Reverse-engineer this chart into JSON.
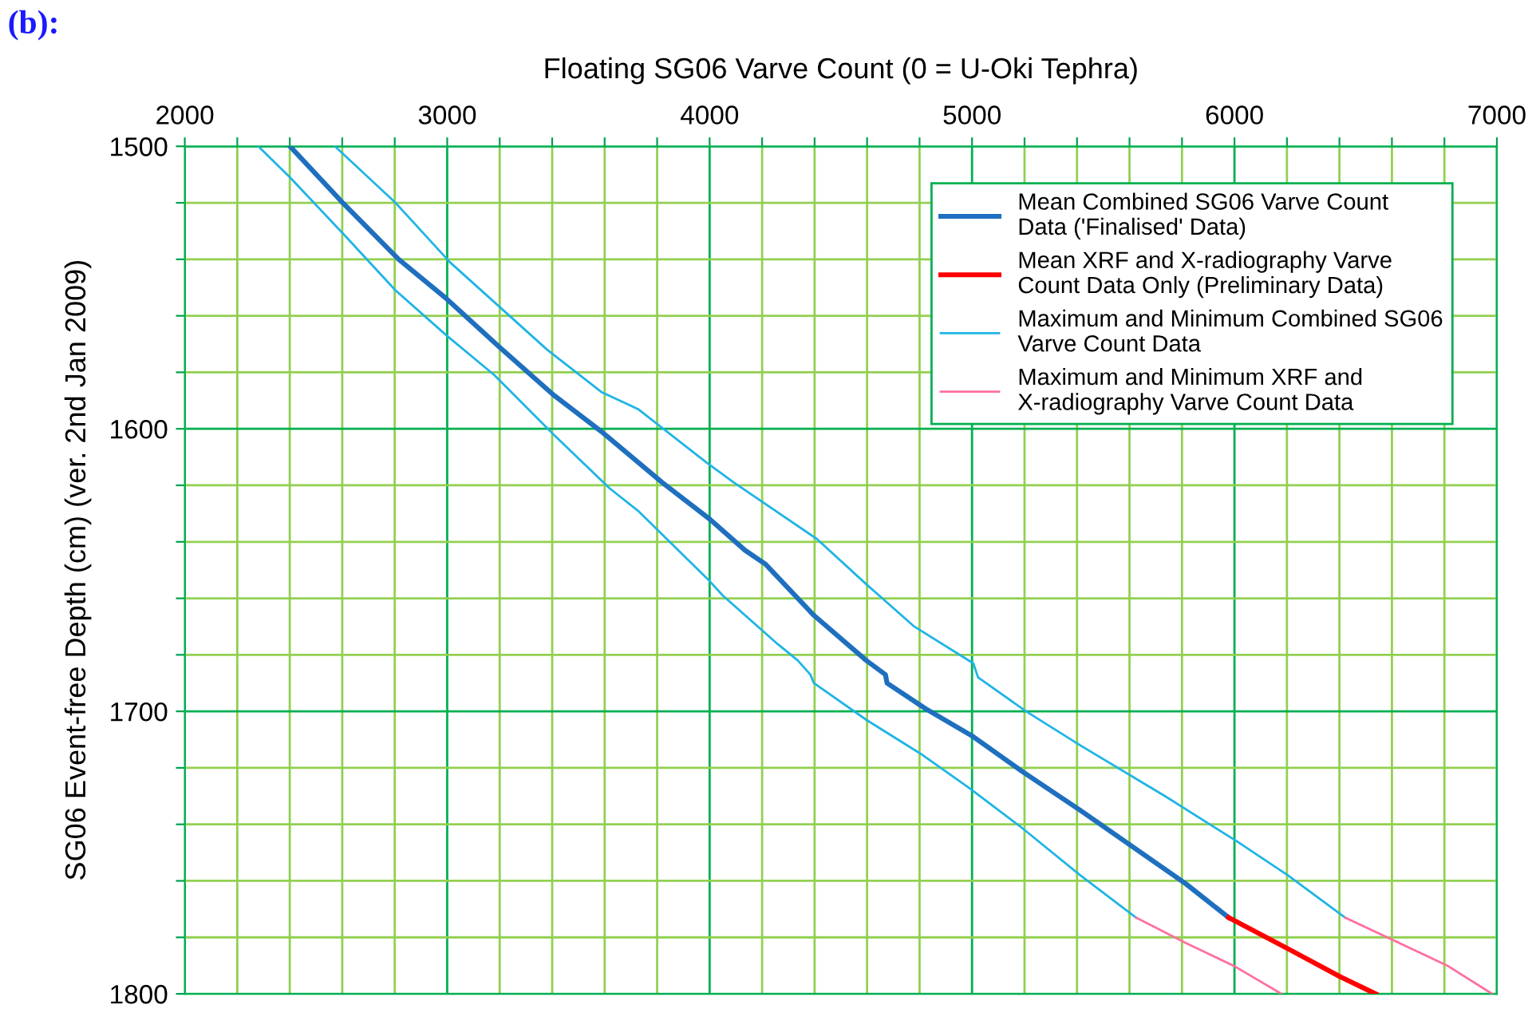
{
  "chart_data": {
    "type": "line",
    "xlabel": "Floating SG06 Varve Count (0 = U-Oki Tephra)",
    "ylabel": "SG06 Event-free Depth (cm) (ver. 2nd Jan 2009)",
    "annotations": [
      "(b):"
    ],
    "xlim": [
      2000,
      7000
    ],
    "ylim": [
      1800,
      1500
    ],
    "xticks": [
      2000,
      {
        "value": 2200,
        "label": null
      },
      {
        "value": 2400,
        "label": null
      },
      {
        "value": 2600,
        "label": null
      },
      {
        "value": 2800,
        "label": null
      },
      3000,
      {
        "value": 3200,
        "label": null
      },
      {
        "value": 3400,
        "label": null
      },
      {
        "value": 3600,
        "label": null
      },
      {
        "value": 3800,
        "label": null
      },
      4000,
      {
        "value": 4200,
        "label": null
      },
      {
        "value": 4400,
        "label": null
      },
      {
        "value": 4600,
        "label": null
      },
      {
        "value": 4800,
        "label": null
      },
      5000,
      {
        "value": 5200,
        "label": null
      },
      {
        "value": 5400,
        "label": null
      },
      {
        "value": 5600,
        "label": null
      },
      {
        "value": 5800,
        "label": null
      },
      6000,
      {
        "value": 6200,
        "label": null
      },
      {
        "value": 6400,
        "label": null
      },
      {
        "value": 6600,
        "label": null
      },
      {
        "value": 6800,
        "label": null
      },
      7000
    ],
    "yticks": [
      1500,
      {
        "value": 1520,
        "label": null
      },
      {
        "value": 1540,
        "label": null
      },
      {
        "value": 1560,
        "label": null
      },
      {
        "value": 1580,
        "label": null
      },
      1600,
      {
        "value": 1620,
        "label": null
      },
      {
        "value": 1640,
        "label": null
      },
      {
        "value": 1660,
        "label": null
      },
      {
        "value": 1680,
        "label": null
      },
      1700,
      {
        "value": 1720,
        "label": null
      },
      {
        "value": 1740,
        "label": null
      },
      {
        "value": 1760,
        "label": null
      },
      {
        "value": 1780,
        "label": null
      },
      1800
    ],
    "grid": true,
    "legend": "top right",
    "marker": "none",
    "line_style": "solid",
    "series": [
      {
        "name": "Mean Combined SG06 Varve Count Data ('Finalised' Data)",
        "color": "#1f6fbf",
        "x": [
          2401,
          2602,
          2815,
          2998,
          3198,
          3405,
          3588,
          3819,
          4001,
          4135,
          4214,
          4397,
          4597,
          4670,
          4676,
          4822,
          5005,
          5187,
          5412,
          5613,
          5814,
          5978
        ],
        "values": [
          1500,
          1520,
          1540,
          1554,
          1571,
          1588,
          1601,
          1619,
          1632,
          1643,
          1648,
          1666,
          1682,
          1687,
          1690,
          1699,
          1709,
          1721,
          1735,
          1748,
          1761,
          1773
        ]
      },
      {
        "name": "Mean XRF and X-radiography Varve Count Data Only (Preliminary Data)",
        "color": "#ff0000",
        "x": [
          5978,
          6203,
          6404,
          6538
        ],
        "values": [
          1773,
          1784,
          1794,
          1800
        ]
      },
      {
        "name": "Maximum and Minimum Combined SG06 Varve Count Data",
        "color": "#1fb4e6",
        "x": [
          2572,
          2803,
          3010,
          3381,
          3588,
          3727,
          3989,
          4092,
          4409,
          4597,
          4658,
          4780,
          5005,
          5023,
          5206,
          5412,
          5735,
          6009,
          6203,
          6422
        ],
        "values": [
          1500,
          1520,
          1541,
          1572,
          1587,
          1593,
          1612,
          1619,
          1639,
          1655,
          1660,
          1670,
          1683,
          1688,
          1700,
          1712,
          1730,
          1746,
          1758,
          1773
        ]
      },
      {
        "color": "#1fb4e6",
        "x": [
          2280,
          2401,
          2614,
          2803,
          2998,
          3180,
          3405,
          3618,
          3727,
          4001,
          4050,
          4257,
          4336,
          4384,
          4397,
          4597,
          4804,
          4987,
          5187,
          5412,
          5625
        ],
        "values": [
          1500,
          1511,
          1532,
          1551,
          1567,
          1581,
          1602,
          1621,
          1629,
          1654,
          1659,
          1676,
          1682,
          1687,
          1690,
          1703,
          1715,
          1727,
          1741,
          1758,
          1773
        ]
      },
      {
        "name": "Maximum and Minimum XRF and X-radiography Varve Count Data",
        "color": "#ff6f9f",
        "x": [
          6422,
          6605,
          6811,
          6982
        ],
        "values": [
          1773,
          1781,
          1790,
          1800
        ]
      },
      {
        "color": "#ff6f9f",
        "x": [
          5625,
          5814,
          5996,
          6179
        ],
        "values": [
          1773,
          1782,
          1790,
          1800
        ]
      }
    ]
  }
}
